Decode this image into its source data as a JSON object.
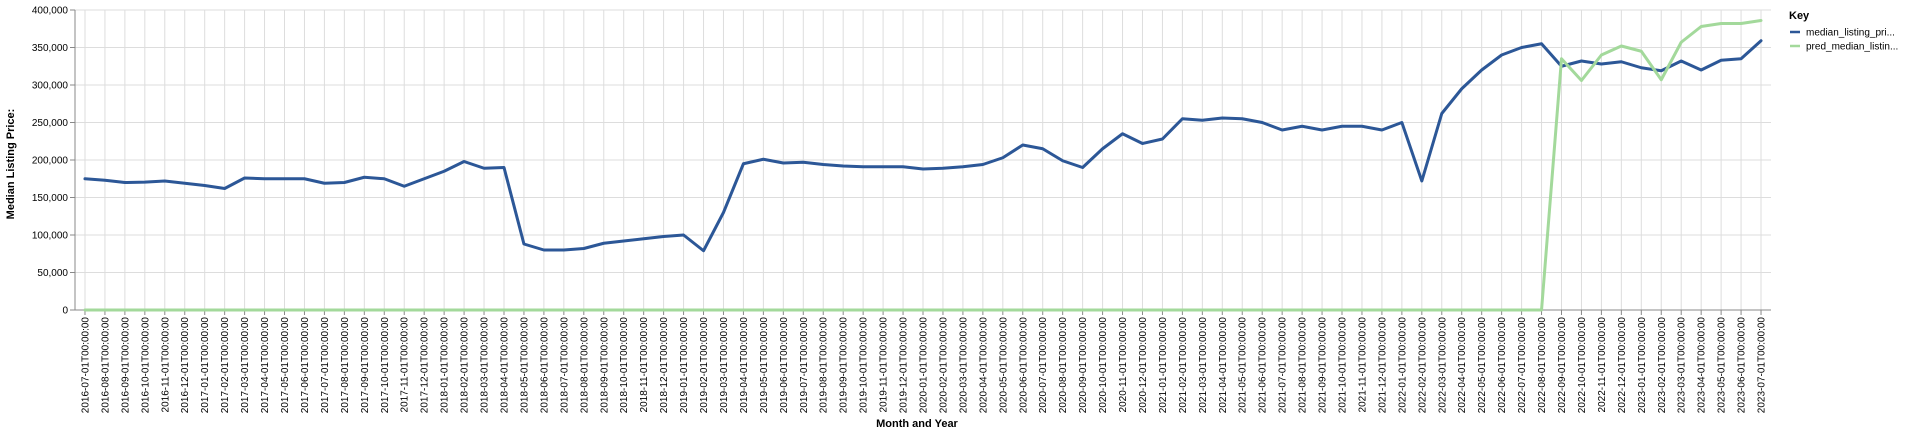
{
  "chart_data": {
    "type": "line",
    "xlabel": "Month and Year",
    "ylabel": "Median Listing Price:",
    "ylim": [
      0,
      400000
    ],
    "yticks": [
      "0",
      "50,000",
      "100,000",
      "150,000",
      "200,000",
      "250,000",
      "300,000",
      "350,000",
      "400,000"
    ],
    "ytick_values": [
      0,
      50000,
      100000,
      150000,
      200000,
      250000,
      300000,
      350000,
      400000
    ],
    "grid": true,
    "legend_title": "Key",
    "legend_position": "top-right",
    "x": [
      "2016-07-01T00:00:00",
      "2016-08-01T00:00:00",
      "2016-09-01T00:00:00",
      "2016-10-01T00:00:00",
      "2016-11-01T00:00:00",
      "2016-12-01T00:00:00",
      "2017-01-01T00:00:00",
      "2017-02-01T00:00:00",
      "2017-03-01T00:00:00",
      "2017-04-01T00:00:00",
      "2017-05-01T00:00:00",
      "2017-06-01T00:00:00",
      "2017-07-01T00:00:00",
      "2017-08-01T00:00:00",
      "2017-09-01T00:00:00",
      "2017-10-01T00:00:00",
      "2017-11-01T00:00:00",
      "2017-12-01T00:00:00",
      "2018-01-01T00:00:00",
      "2018-02-01T00:00:00",
      "2018-03-01T00:00:00",
      "2018-04-01T00:00:00",
      "2018-05-01T00:00:00",
      "2018-06-01T00:00:00",
      "2018-07-01T00:00:00",
      "2018-08-01T00:00:00",
      "2018-09-01T00:00:00",
      "2018-10-01T00:00:00",
      "2018-11-01T00:00:00",
      "2018-12-01T00:00:00",
      "2019-01-01T00:00:00",
      "2019-02-01T00:00:00",
      "2019-03-01T00:00:00",
      "2019-04-01T00:00:00",
      "2019-05-01T00:00:00",
      "2019-06-01T00:00:00",
      "2019-07-01T00:00:00",
      "2019-08-01T00:00:00",
      "2019-09-01T00:00:00",
      "2019-10-01T00:00:00",
      "2019-11-01T00:00:00",
      "2019-12-01T00:00:00",
      "2020-01-01T00:00:00",
      "2020-02-01T00:00:00",
      "2020-03-01T00:00:00",
      "2020-04-01T00:00:00",
      "2020-05-01T00:00:00",
      "2020-06-01T00:00:00",
      "2020-07-01T00:00:00",
      "2020-08-01T00:00:00",
      "2020-09-01T00:00:00",
      "2020-10-01T00:00:00",
      "2020-11-01T00:00:00",
      "2020-12-01T00:00:00",
      "2021-01-01T00:00:00",
      "2021-02-01T00:00:00",
      "2021-03-01T00:00:00",
      "2021-04-01T00:00:00",
      "2021-05-01T00:00:00",
      "2021-06-01T00:00:00",
      "2021-07-01T00:00:00",
      "2021-08-01T00:00:00",
      "2021-09-01T00:00:00",
      "2021-10-01T00:00:00",
      "2021-11-01T00:00:00",
      "2021-12-01T00:00:00",
      "2022-01-01T00:00:00",
      "2022-02-01T00:00:00",
      "2022-03-01T00:00:00",
      "2022-04-01T00:00:00",
      "2022-05-01T00:00:00",
      "2022-06-01T00:00:00",
      "2022-07-01T00:00:00",
      "2022-08-01T00:00:00",
      "2022-09-01T00:00:00",
      "2022-10-01T00:00:00",
      "2022-11-01T00:00:00",
      "2022-12-01T00:00:00",
      "2023-01-01T00:00:00",
      "2023-02-01T00:00:00",
      "2023-03-01T00:00:00",
      "2023-04-01T00:00:00",
      "2023-05-01T00:00:00",
      "2023-06-01T00:00:00",
      "2023-07-01T00:00:00"
    ],
    "series": [
      {
        "name": "median_listing_pri...",
        "color": "#2c5797",
        "values": [
          175000,
          173000,
          170000,
          170500,
          172000,
          169000,
          166000,
          162000,
          176000,
          175000,
          175000,
          175000,
          169000,
          170000,
          177000,
          175000,
          165000,
          175000,
          185000,
          198000,
          189000,
          190000,
          88000,
          80000,
          80000,
          82000,
          89000,
          92000,
          95000,
          98000,
          100000,
          79000,
          130000,
          195000,
          201000,
          196000,
          197000,
          194000,
          192000,
          191000,
          191000,
          191000,
          188000,
          189000,
          191000,
          194000,
          203000,
          220000,
          215000,
          199000,
          190000,
          215000,
          235000,
          222000,
          228000,
          255000,
          253000,
          256000,
          255000,
          250000,
          240000,
          245000,
          240000,
          245000,
          245000,
          240000,
          250000,
          172000,
          262000,
          295000,
          320000,
          340000,
          350000,
          355000,
          325000,
          332000,
          328000,
          331000,
          323000,
          319000,
          332000,
          320000,
          333000,
          335000,
          359000
        ]
      },
      {
        "name": "pred_median_listin...",
        "color": "#a3d99b",
        "values": [
          0,
          0,
          0,
          0,
          0,
          0,
          0,
          0,
          0,
          0,
          0,
          0,
          0,
          0,
          0,
          0,
          0,
          0,
          0,
          0,
          0,
          0,
          0,
          0,
          0,
          0,
          0,
          0,
          0,
          0,
          0,
          0,
          0,
          0,
          0,
          0,
          0,
          0,
          0,
          0,
          0,
          0,
          0,
          0,
          0,
          0,
          0,
          0,
          0,
          0,
          0,
          0,
          0,
          0,
          0,
          0,
          0,
          0,
          0,
          0,
          0,
          0,
          0,
          0,
          0,
          0,
          0,
          0,
          0,
          0,
          0,
          0,
          0,
          0,
          335000,
          306000,
          340000,
          352000,
          345000,
          307000,
          357000,
          378000,
          382000,
          382000,
          386000
        ]
      }
    ]
  }
}
